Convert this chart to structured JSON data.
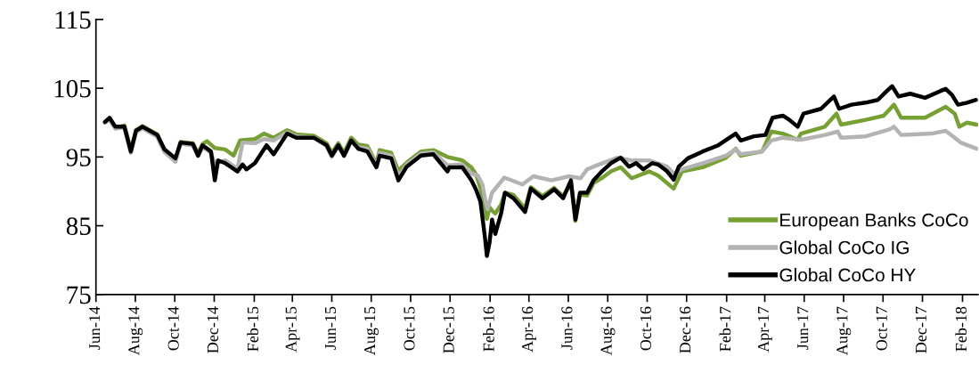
{
  "chart_data": {
    "type": "line",
    "xlim": [
      "2014-06-01",
      "2018-02-25"
    ],
    "xticks": [
      {
        "value": "2014-06-01",
        "label": "Jun-14"
      },
      {
        "value": "2014-08-01",
        "label": "Aug-14"
      },
      {
        "value": "2014-10-01",
        "label": "Oct-14"
      },
      {
        "value": "2014-12-01",
        "label": "Dec-14"
      },
      {
        "value": "2015-02-01",
        "label": "Feb-15"
      },
      {
        "value": "2015-04-01",
        "label": "Apr-15"
      },
      {
        "value": "2015-06-01",
        "label": "Jun-15"
      },
      {
        "value": "2015-08-01",
        "label": "Aug-15"
      },
      {
        "value": "2015-10-01",
        "label": "Oct-15"
      },
      {
        "value": "2015-12-01",
        "label": "Dec-15"
      },
      {
        "value": "2016-02-01",
        "label": "Feb-16"
      },
      {
        "value": "2016-04-01",
        "label": "Apr-16"
      },
      {
        "value": "2016-06-01",
        "label": "Jun-16"
      },
      {
        "value": "2016-08-01",
        "label": "Aug-16"
      },
      {
        "value": "2016-10-01",
        "label": "Oct-16"
      },
      {
        "value": "2016-12-01",
        "label": "Dec-16"
      },
      {
        "value": "2017-02-01",
        "label": "Feb-17"
      },
      {
        "value": "2017-04-01",
        "label": "Apr-17"
      },
      {
        "value": "2017-06-01",
        "label": "Jun-17"
      },
      {
        "value": "2017-08-01",
        "label": "Aug-17"
      },
      {
        "value": "2017-10-01",
        "label": "Oct-17"
      },
      {
        "value": "2017-12-01",
        "label": "Dec-17"
      },
      {
        "value": "2018-02-01",
        "label": "Feb-18"
      }
    ],
    "ylim": [
      75,
      115
    ],
    "yticks": [
      75,
      85,
      95,
      105,
      115
    ],
    "grid": false,
    "legend": "bottom right",
    "marker": "none",
    "line_style": "solid",
    "series": [
      {
        "name": "European Banks CoCo",
        "color": "#77a033",
        "x": [
          "2014-06-15",
          "2014-06-22",
          "2014-07-01",
          "2014-07-15",
          "2014-07-25",
          "2014-08-02",
          "2014-08-12",
          "2014-09-04",
          "2014-09-15",
          "2014-10-02",
          "2014-10-10",
          "2014-10-29",
          "2014-11-06",
          "2014-11-13",
          "2014-11-20",
          "2014-12-02",
          "2014-12-18",
          "2014-12-31",
          "2015-01-10",
          "2015-02-02",
          "2015-02-16",
          "2015-03-03",
          "2015-03-24",
          "2015-04-07",
          "2015-05-04",
          "2015-05-24",
          "2015-06-01",
          "2015-06-11",
          "2015-06-20",
          "2015-07-01",
          "2015-07-12",
          "2015-07-26",
          "2015-08-09",
          "2015-08-14",
          "2015-09-01",
          "2015-09-12",
          "2015-09-25",
          "2015-10-17",
          "2015-11-05",
          "2015-11-27",
          "2015-12-20",
          "2016-01-03",
          "2016-01-10",
          "2016-01-17",
          "2016-01-24",
          "2016-01-27",
          "2016-01-31",
          "2016-02-04",
          "2016-02-09",
          "2016-02-18",
          "2016-02-24",
          "2016-03-08",
          "2016-03-26",
          "2016-04-04",
          "2016-04-22",
          "2016-05-10",
          "2016-05-24",
          "2016-06-05",
          "2016-06-12",
          "2016-06-19",
          "2016-06-30",
          "2016-07-10",
          "2016-07-24",
          "2016-08-06",
          "2016-08-21",
          "2016-09-07",
          "2016-10-04",
          "2016-10-18",
          "2016-11-11",
          "2016-11-24",
          "2016-12-26",
          "2017-01-31",
          "2017-02-15",
          "2017-02-23",
          "2017-03-28",
          "2017-04-11",
          "2017-04-29",
          "2017-05-09",
          "2017-05-22",
          "2017-05-27",
          "2017-07-03",
          "2017-07-21",
          "2017-07-28",
          "2017-09-04",
          "2017-10-02",
          "2017-10-18",
          "2017-10-29",
          "2017-12-05",
          "2018-01-06",
          "2018-01-20",
          "2018-01-27",
          "2018-02-08",
          "2018-02-23"
        ],
        "values": [
          100.0,
          100.5,
          99.2,
          99.6,
          96.0,
          98.9,
          99.5,
          98.3,
          96.0,
          94.5,
          97.2,
          97.0,
          95.5,
          96.9,
          97.3,
          96.3,
          96.1,
          95.2,
          97.4,
          97.6,
          98.4,
          97.8,
          98.9,
          98.3,
          98.1,
          97.0,
          95.6,
          97.0,
          95.6,
          97.8,
          96.8,
          96.6,
          94.0,
          96.0,
          95.6,
          93.0,
          94.2,
          95.8,
          96.0,
          95.0,
          94.5,
          93.5,
          92.5,
          90.5,
          87.0,
          86.0,
          87.7,
          87.2,
          86.8,
          88.1,
          89.8,
          89.5,
          87.5,
          90.6,
          89.3,
          90.5,
          89.3,
          91.2,
          85.7,
          89.5,
          89.4,
          91.2,
          92.0,
          92.9,
          93.5,
          91.9,
          92.9,
          92.3,
          90.4,
          92.9,
          93.5,
          94.9,
          96.2,
          95.2,
          95.8,
          98.7,
          98.4,
          98.0,
          97.5,
          98.4,
          99.4,
          101.3,
          99.7,
          100.4,
          101.0,
          102.6,
          100.7,
          100.7,
          102.3,
          101.3,
          99.4,
          100.0,
          99.7
        ]
      },
      {
        "name": "Global CoCo IG",
        "color": "#b3b3b3",
        "x": [
          "2014-06-15",
          "2014-06-22",
          "2014-07-01",
          "2014-07-15",
          "2014-07-25",
          "2014-08-02",
          "2014-08-12",
          "2014-09-04",
          "2014-09-15",
          "2014-10-02",
          "2014-10-10",
          "2014-10-29",
          "2014-11-06",
          "2014-11-13",
          "2014-11-26",
          "2014-12-02",
          "2014-12-18",
          "2015-01-06",
          "2015-01-14",
          "2015-02-02",
          "2015-02-16",
          "2015-03-03",
          "2015-03-24",
          "2015-04-07",
          "2015-05-04",
          "2015-05-24",
          "2015-06-01",
          "2015-06-11",
          "2015-06-20",
          "2015-07-01",
          "2015-07-12",
          "2015-07-26",
          "2015-08-09",
          "2015-08-14",
          "2015-09-01",
          "2015-09-12",
          "2015-09-25",
          "2015-10-17",
          "2015-11-05",
          "2015-11-27",
          "2015-12-20",
          "2016-01-03",
          "2016-01-13",
          "2016-01-20",
          "2016-01-24",
          "2016-01-28",
          "2016-02-04",
          "2016-02-23",
          "2016-03-22",
          "2016-04-08",
          "2016-05-06",
          "2016-06-02",
          "2016-06-20",
          "2016-06-30",
          "2016-07-18",
          "2016-08-16",
          "2016-09-07",
          "2016-10-04",
          "2016-11-01",
          "2016-11-11",
          "2016-11-24",
          "2016-12-26",
          "2017-01-31",
          "2017-02-15",
          "2017-02-23",
          "2017-03-28",
          "2017-04-11",
          "2017-04-29",
          "2017-05-27",
          "2017-07-03",
          "2017-07-23",
          "2017-07-28",
          "2017-09-04",
          "2017-10-11",
          "2017-10-18",
          "2017-10-29",
          "2017-12-15",
          "2018-01-06",
          "2018-01-20",
          "2018-01-29",
          "2018-02-23"
        ],
        "values": [
          100.0,
          100.4,
          99.1,
          99.3,
          95.6,
          98.6,
          99.2,
          97.9,
          95.7,
          94.3,
          96.9,
          96.7,
          95.1,
          96.5,
          95.6,
          94.0,
          94.5,
          93.3,
          97.1,
          97.0,
          97.6,
          97.4,
          98.6,
          98.0,
          97.8,
          96.6,
          95.0,
          96.6,
          95.1,
          97.4,
          96.4,
          96.2,
          93.7,
          95.6,
          95.2,
          92.2,
          93.9,
          95.5,
          95.7,
          93.8,
          93.9,
          92.6,
          92.3,
          91.0,
          89.0,
          87.4,
          89.8,
          92.0,
          91.0,
          92.2,
          91.6,
          92.2,
          91.9,
          93.2,
          93.9,
          94.9,
          94.5,
          94.5,
          93.6,
          92.6,
          93.2,
          94.1,
          95.2,
          96.1,
          95.4,
          95.8,
          97.4,
          97.8,
          97.5,
          98.2,
          98.7,
          97.8,
          98.0,
          99.0,
          99.4,
          98.2,
          98.4,
          98.8,
          97.8,
          97.1,
          96.2
        ]
      },
      {
        "name": "Global CoCo HY",
        "color": "#000000",
        "x": [
          "2014-06-15",
          "2014-06-22",
          "2014-07-01",
          "2014-07-15",
          "2014-07-25",
          "2014-08-02",
          "2014-08-12",
          "2014-09-04",
          "2014-09-15",
          "2014-10-02",
          "2014-10-10",
          "2014-10-29",
          "2014-11-06",
          "2014-11-13",
          "2014-11-26",
          "2014-12-02",
          "2014-12-07",
          "2014-12-18",
          "2015-01-06",
          "2015-01-14",
          "2015-01-20",
          "2015-02-02",
          "2015-02-20",
          "2015-03-03",
          "2015-03-24",
          "2015-04-07",
          "2015-05-04",
          "2015-05-24",
          "2015-06-01",
          "2015-06-11",
          "2015-06-20",
          "2015-07-01",
          "2015-07-12",
          "2015-07-26",
          "2015-08-09",
          "2015-08-14",
          "2015-09-01",
          "2015-09-12",
          "2015-09-25",
          "2015-10-17",
          "2015-11-05",
          "2015-11-27",
          "2015-11-30",
          "2015-12-20",
          "2016-01-03",
          "2016-01-10",
          "2016-01-17",
          "2016-01-24",
          "2016-01-27",
          "2016-01-31",
          "2016-02-04",
          "2016-02-09",
          "2016-02-18",
          "2016-02-24",
          "2016-03-08",
          "2016-03-26",
          "2016-04-04",
          "2016-04-22",
          "2016-05-10",
          "2016-05-24",
          "2016-06-05",
          "2016-06-12",
          "2016-06-19",
          "2016-06-30",
          "2016-07-10",
          "2016-07-24",
          "2016-08-06",
          "2016-08-21",
          "2016-09-03",
          "2016-09-14",
          "2016-09-25",
          "2016-10-09",
          "2016-10-18",
          "2016-11-01",
          "2016-11-11",
          "2016-11-19",
          "2016-12-03",
          "2016-12-26",
          "2017-01-19",
          "2017-02-15",
          "2017-02-23",
          "2017-03-15",
          "2017-04-02",
          "2017-04-13",
          "2017-04-29",
          "2017-05-09",
          "2017-05-22",
          "2017-05-31",
          "2017-06-27",
          "2017-07-17",
          "2017-07-25",
          "2017-08-13",
          "2017-09-04",
          "2017-09-23",
          "2017-10-07",
          "2017-10-15",
          "2017-10-25",
          "2017-11-12",
          "2017-12-05",
          "2017-12-29",
          "2018-01-06",
          "2018-01-16",
          "2018-01-25",
          "2018-02-08",
          "2018-02-22"
        ],
        "values": [
          100.1,
          100.7,
          99.4,
          99.4,
          95.8,
          98.8,
          99.4,
          98.2,
          96.1,
          94.8,
          97.1,
          96.9,
          95.2,
          96.7,
          95.8,
          91.6,
          94.5,
          94.1,
          92.9,
          93.9,
          93.2,
          94.1,
          96.7,
          95.4,
          98.4,
          97.8,
          97.8,
          96.7,
          95.2,
          96.7,
          95.2,
          97.4,
          96.2,
          95.8,
          93.5,
          95.2,
          94.8,
          91.6,
          93.6,
          95.2,
          95.4,
          92.9,
          93.5,
          93.5,
          91.6,
          90.3,
          88.5,
          83.3,
          80.6,
          82.5,
          85.9,
          83.8,
          86.8,
          89.8,
          89.0,
          87.0,
          90.4,
          89.0,
          90.3,
          89.0,
          91.6,
          85.9,
          89.8,
          89.8,
          91.6,
          93.0,
          94.1,
          94.9,
          93.6,
          94.1,
          93.2,
          94.1,
          93.9,
          92.9,
          91.7,
          93.6,
          94.8,
          95.8,
          96.7,
          98.4,
          97.4,
          98.0,
          98.2,
          100.7,
          101.0,
          100.4,
          99.4,
          101.3,
          102.0,
          103.8,
          102.0,
          102.6,
          102.9,
          103.3,
          104.6,
          105.3,
          103.8,
          104.2,
          103.6,
          104.6,
          104.9,
          104.0,
          102.6,
          102.9,
          103.3
        ]
      }
    ]
  }
}
